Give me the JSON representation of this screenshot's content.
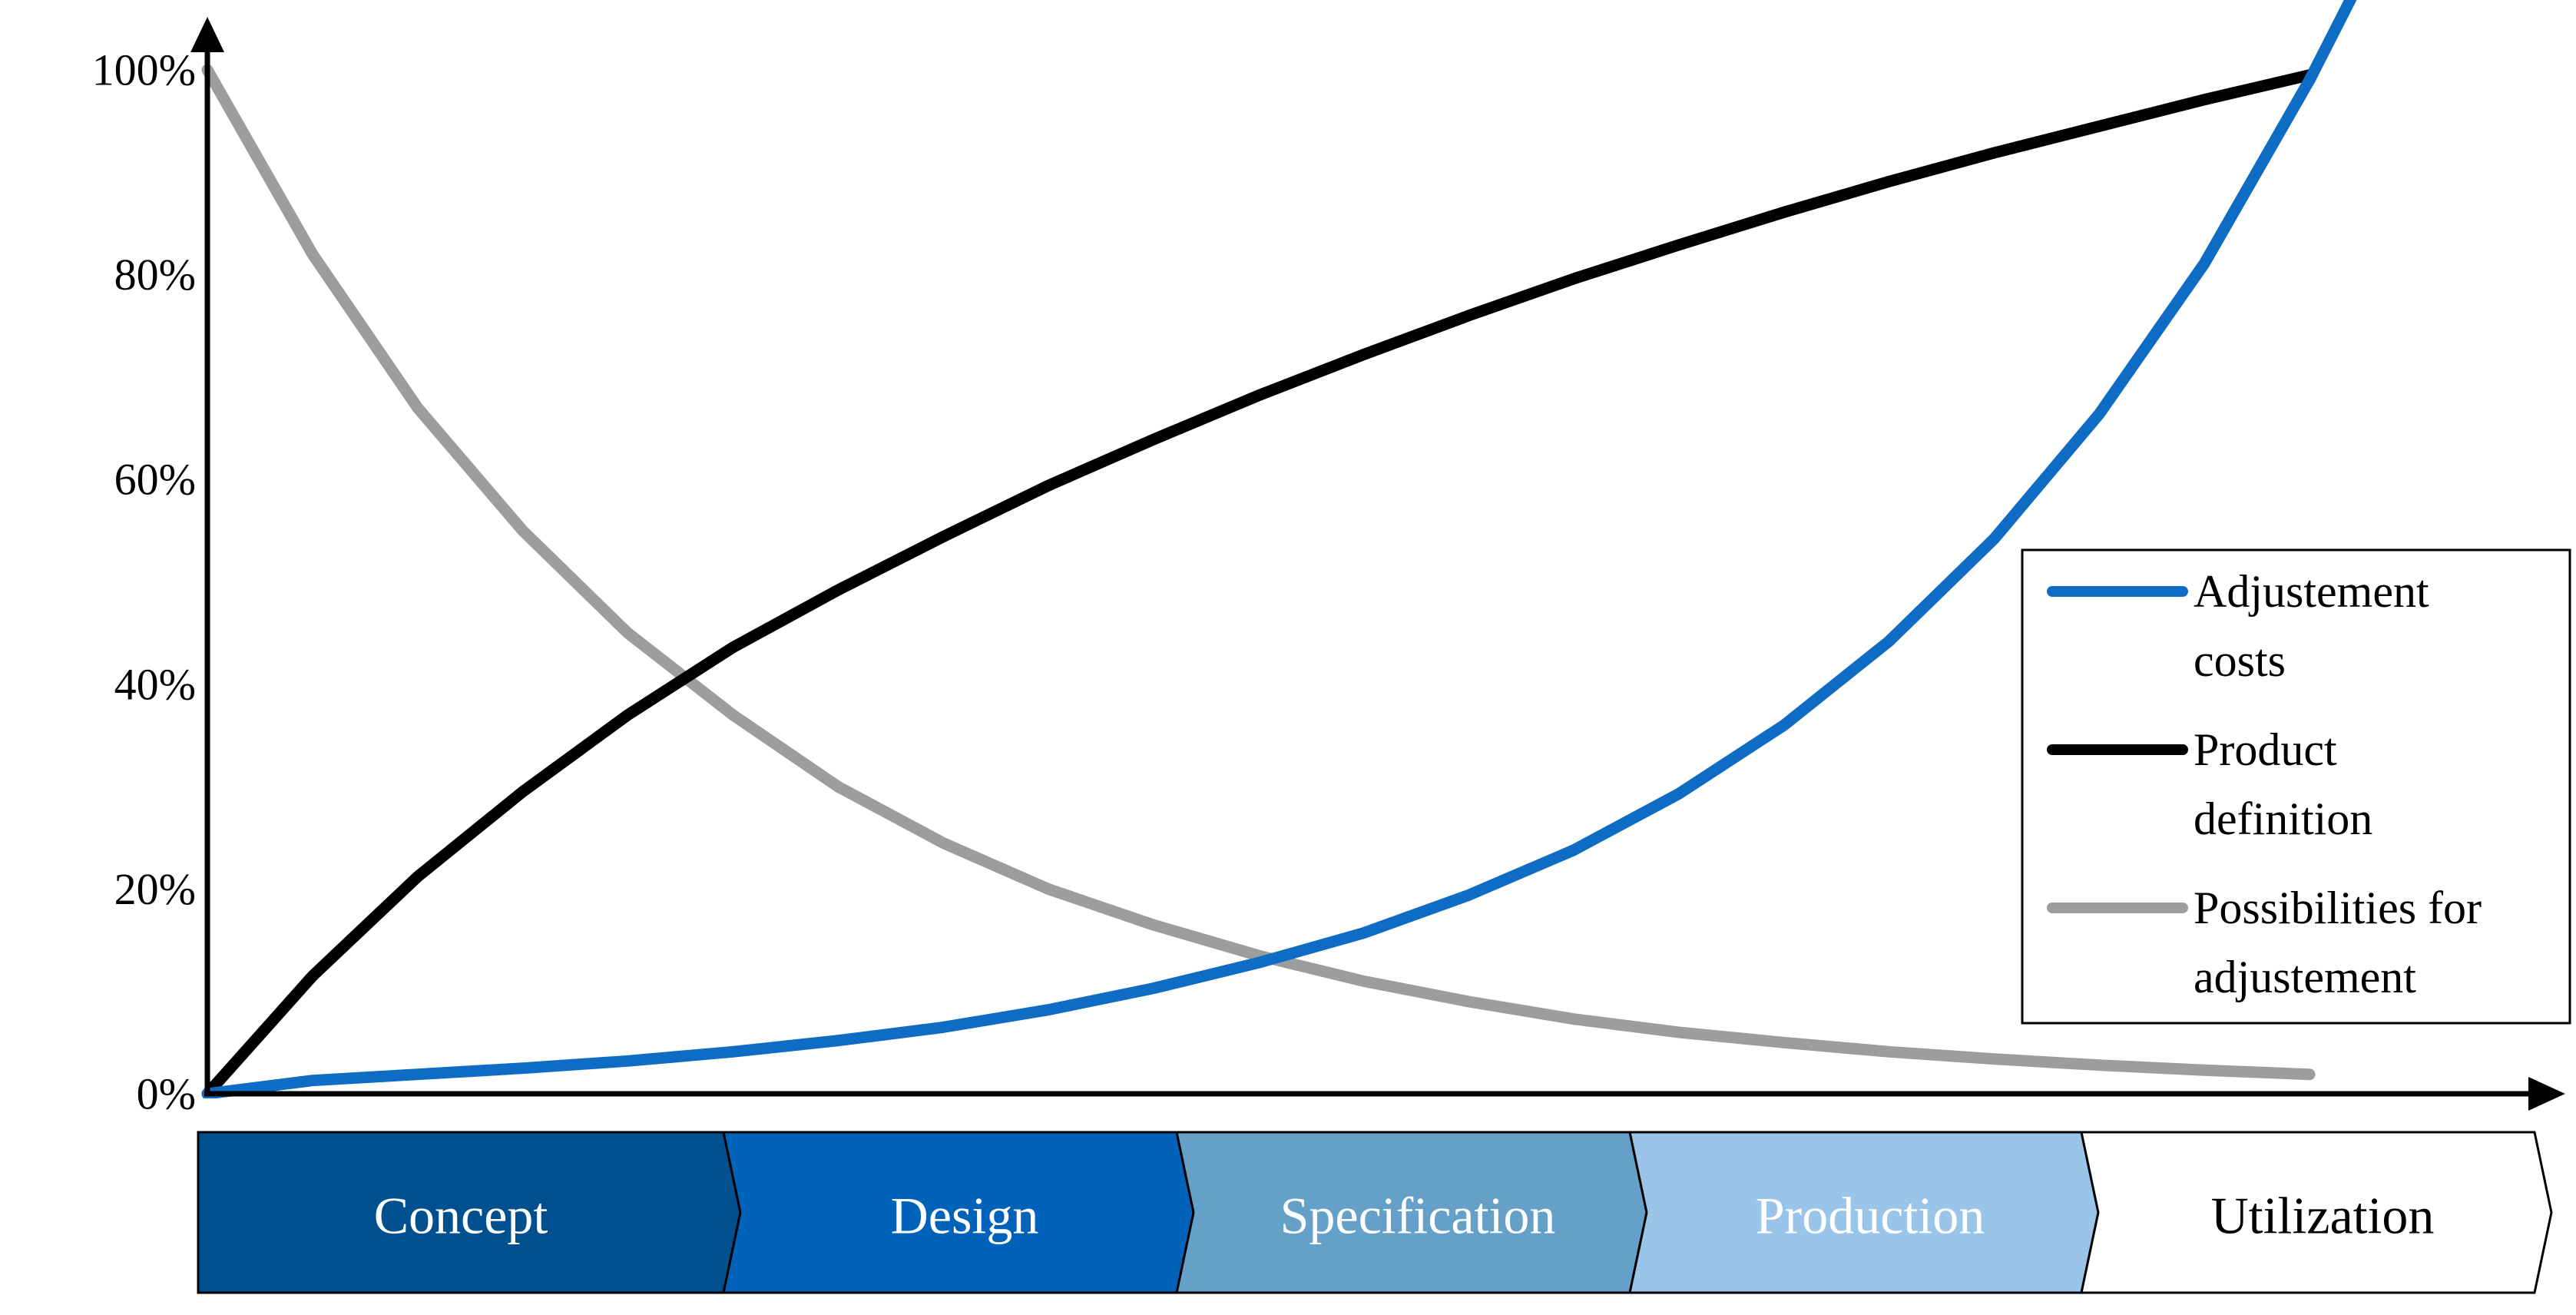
{
  "chart_data": {
    "type": "line",
    "title": "",
    "xlabel": "",
    "ylabel": "",
    "ylim": [
      0,
      100
    ],
    "y_ticks": [
      "0%",
      "20%",
      "40%",
      "60%",
      "80%",
      "100%"
    ],
    "y_tick_values": [
      0,
      20,
      40,
      60,
      80,
      100
    ],
    "grid": false,
    "legend_position": "right",
    "x": [
      0,
      1,
      2,
      3,
      4,
      5,
      6,
      7,
      8,
      9,
      10,
      11,
      12,
      13,
      14,
      15,
      16,
      17,
      18,
      19,
      20
    ],
    "series": [
      {
        "name": "Adjustement costs",
        "color": "#0f6cc4",
        "values": [
          0,
          1.3,
          1.9,
          2.5,
          3.2,
          4.1,
          5.2,
          6.5,
          8.2,
          10.3,
          12.8,
          15.7,
          19.4,
          23.8,
          29.3,
          36,
          44.2,
          54.2,
          66.4,
          81.1,
          99
        ]
      },
      {
        "name": "Product definition",
        "color": "#000000",
        "values": [
          0,
          11.5,
          21.2,
          29.5,
          37,
          43.6,
          49.2,
          54.4,
          59.4,
          63.9,
          68.2,
          72.2,
          76,
          79.6,
          82.9,
          86.1,
          89.1,
          91.9,
          94.5,
          97.1,
          99.5
        ]
      },
      {
        "name": "Possibilities for adjustement",
        "color": "#9d9d9d",
        "values": [
          100,
          82,
          67,
          55,
          45,
          37,
          30,
          24.5,
          20,
          16.5,
          13.5,
          11,
          9,
          7.3,
          6,
          5,
          4.1,
          3.4,
          2.8,
          2.3,
          1.9
        ]
      }
    ],
    "legend": [
      {
        "line1": "Adjustement",
        "line2": "costs",
        "color": "#0f6cc4"
      },
      {
        "line1": "Product",
        "line2": "definition",
        "color": "#000000"
      },
      {
        "line1": "Possibilities for",
        "line2": "adjustement",
        "color": "#9d9d9d"
      }
    ],
    "phases": [
      {
        "label": "Concept",
        "fill": "#00508f",
        "text_color": "#ffffff"
      },
      {
        "label": "Design",
        "fill": "#0062b8",
        "text_color": "#ffffff"
      },
      {
        "label": "Specification",
        "fill": "#64a0c8",
        "text_color": "#ffffff"
      },
      {
        "label": "Production",
        "fill": "#9ac4e8",
        "text_color": "#ffffff"
      },
      {
        "label": "Utilization",
        "fill": "#ffffff",
        "text_color": "#000000"
      }
    ]
  }
}
